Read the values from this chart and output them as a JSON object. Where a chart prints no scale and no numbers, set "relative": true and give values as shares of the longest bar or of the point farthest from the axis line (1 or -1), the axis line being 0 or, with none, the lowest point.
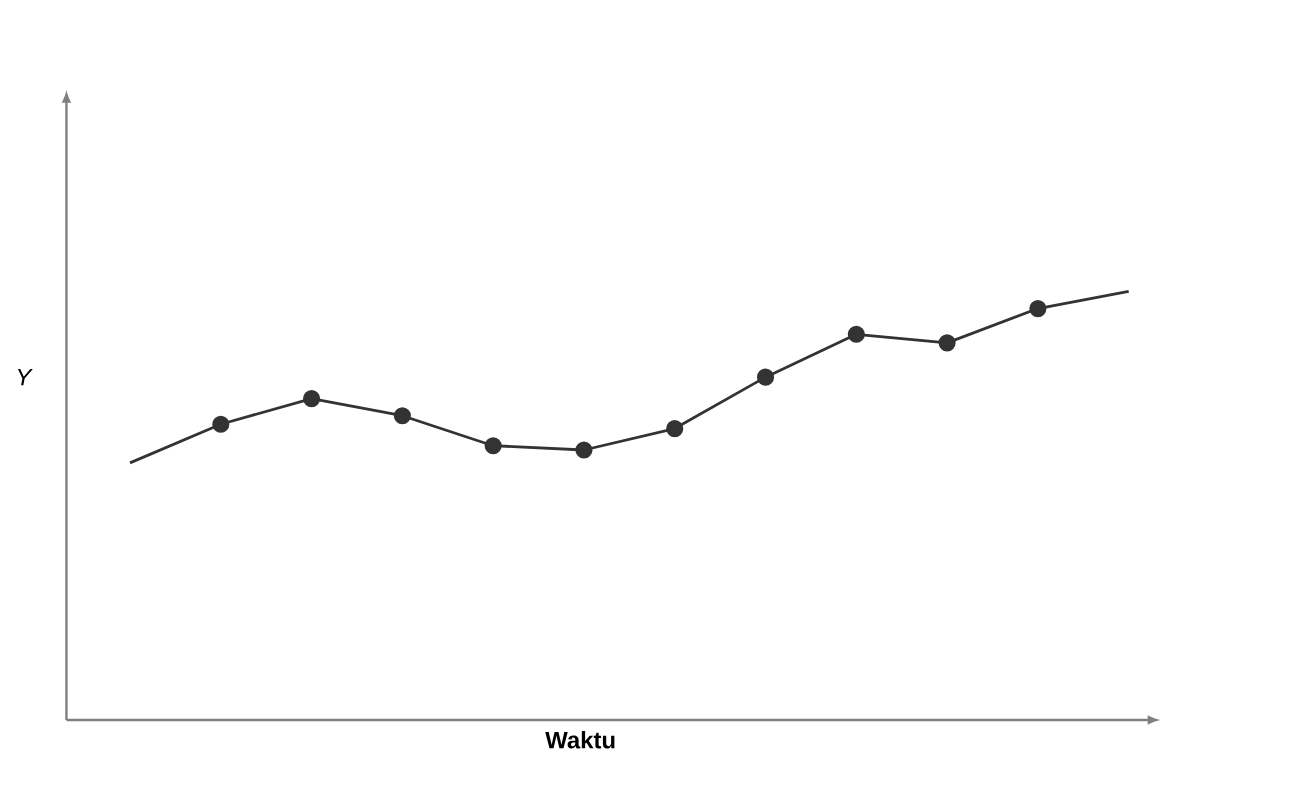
{
  "chart_data": {
    "type": "line",
    "xlabel": "Waktu",
    "ylabel": "Y",
    "relative": true,
    "marker": "circle",
    "categories": [
      null,
      null,
      null,
      null,
      null,
      null,
      null,
      null,
      null,
      null,
      null,
      null
    ],
    "series": [
      {
        "color": "#333333",
        "values": [
          0.6,
          0.69,
          0.75,
          0.71,
          0.64,
          0.63,
          0.68,
          0.8,
          0.9,
          0.88,
          0.96,
          1
        ]
      }
    ]
  }
}
